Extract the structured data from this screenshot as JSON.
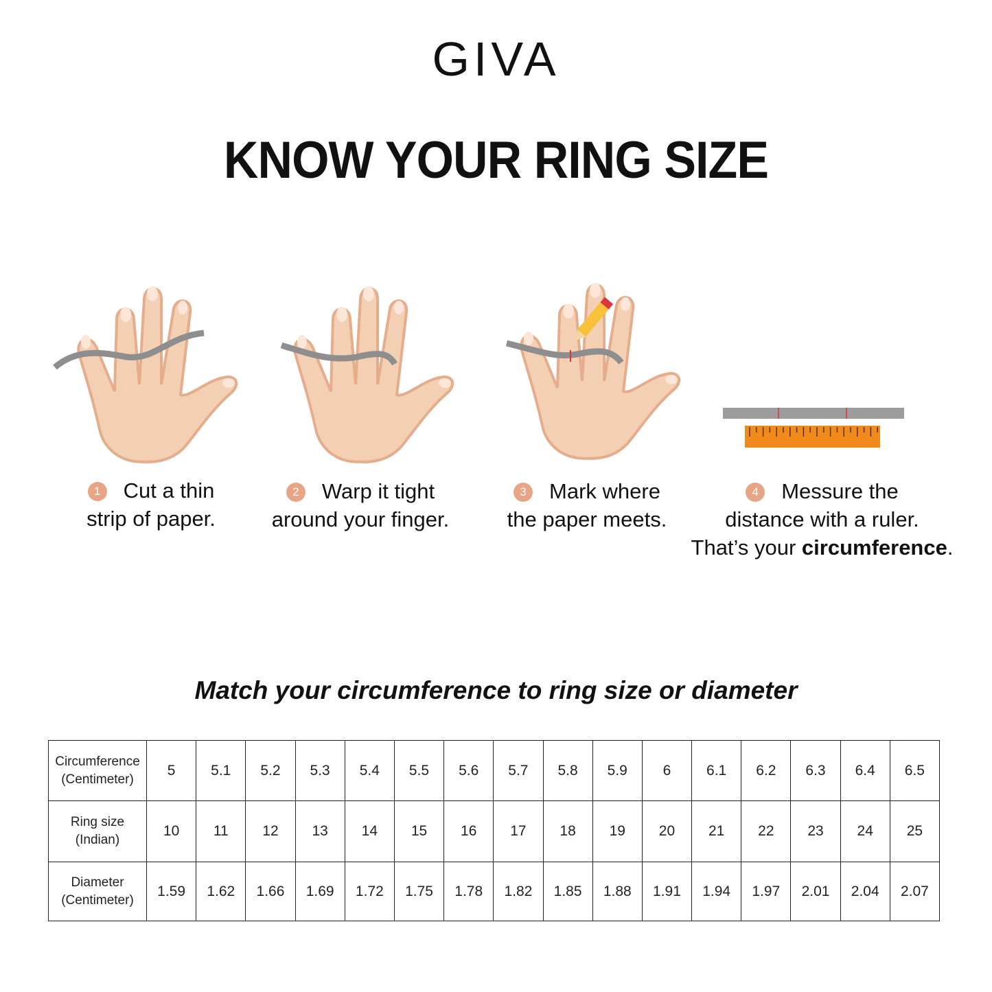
{
  "brand": {
    "logo": "GIVA"
  },
  "title": "KNOW YOUR RING SIZE",
  "steps": [
    {
      "number": "1",
      "line1": "Cut a thin",
      "line2": "strip of paper."
    },
    {
      "number": "2",
      "line1": "Warp it tight",
      "line2": "around your finger."
    },
    {
      "number": "3",
      "line1": "Mark where",
      "line2": "the paper meets."
    },
    {
      "number": "4",
      "line1": "Messure the",
      "line2": "distance with a ruler.",
      "line3_prefix": "That’s your ",
      "line3_bold": "circumference",
      "line3_suffix": "."
    }
  ],
  "subtitle": "Match your circumference to ring size or diameter",
  "table": {
    "rows": [
      {
        "header": [
          "Circumference",
          "(Centimeter)"
        ],
        "values": [
          "5",
          "5.1",
          "5.2",
          "5.3",
          "5.4",
          "5.5",
          "5.6",
          "5.7",
          "5.8",
          "5.9",
          "6",
          "6.1",
          "6.2",
          "6.3",
          "6.4",
          "6.5"
        ]
      },
      {
        "header": [
          "Ring size",
          "(Indian)"
        ],
        "values": [
          "10",
          "11",
          "12",
          "13",
          "14",
          "15",
          "16",
          "17",
          "18",
          "19",
          "20",
          "21",
          "22",
          "23",
          "24",
          "25"
        ]
      },
      {
        "header": [
          "Diameter",
          "(Centimeter)"
        ],
        "values": [
          "1.59",
          "1.62",
          "1.66",
          "1.69",
          "1.72",
          "1.75",
          "1.78",
          "1.82",
          "1.85",
          "1.88",
          "1.91",
          "1.94",
          "1.97",
          "2.01",
          "2.04",
          "2.07"
        ]
      }
    ]
  },
  "colors": {
    "skin": "#f3cfb3",
    "skin_outline": "#e6ad8c",
    "paper_strip": "#8e8e8e",
    "ruler": "#f08a1c",
    "step_badge": "#e8a585",
    "pencil": "#f7c23a"
  }
}
